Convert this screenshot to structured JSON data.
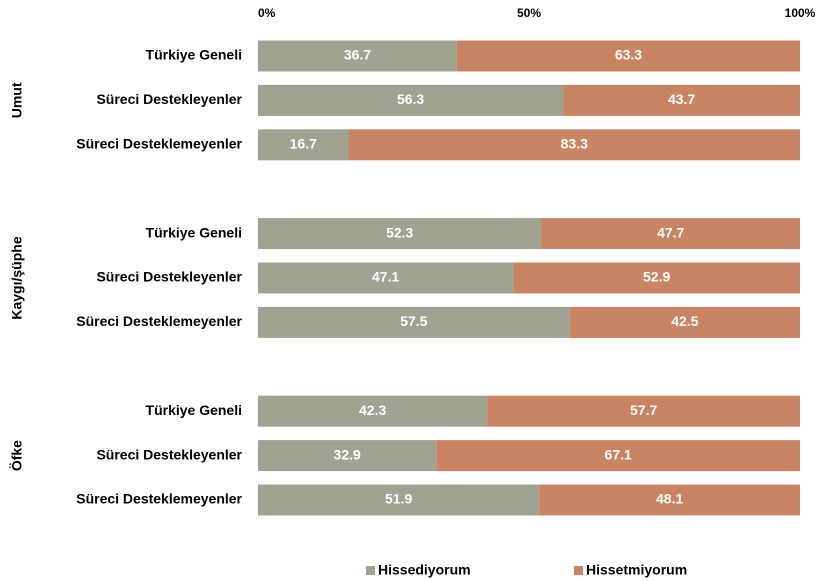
{
  "chart_data": {
    "type": "stacked-bar-horizontal",
    "groups": [
      "Umut",
      "Kaygı/şüphe",
      "Öfke"
    ],
    "categories": [
      "Türkiye Geneli",
      "Süreci Destekleyenler",
      "Süreci Desteklemeyenler",
      "Türkiye Geneli",
      "Süreci Destekleyenler",
      "Süreci Desteklemeyenler",
      "Türkiye Geneli",
      "Süreci Destekleyenler",
      "Süreci Desteklemeyenler"
    ],
    "series": [
      {
        "name": "Hissediyorum",
        "color": "#a0a391",
        "values": [
          36.7,
          56.3,
          16.7,
          52.3,
          47.1,
          57.5,
          42.3,
          32.9,
          51.9
        ]
      },
      {
        "name": "Hissetmiyorum",
        "color": "#c98463",
        "values": [
          63.3,
          43.7,
          83.3,
          47.7,
          52.9,
          42.5,
          57.7,
          67.1,
          48.1
        ]
      }
    ],
    "xlim": [
      0,
      100
    ],
    "xticks": [
      {
        "value": 0,
        "label": "0%"
      },
      {
        "value": 50,
        "label": "50%"
      },
      {
        "value": 100,
        "label": "100%"
      }
    ],
    "legend": "bottom"
  }
}
